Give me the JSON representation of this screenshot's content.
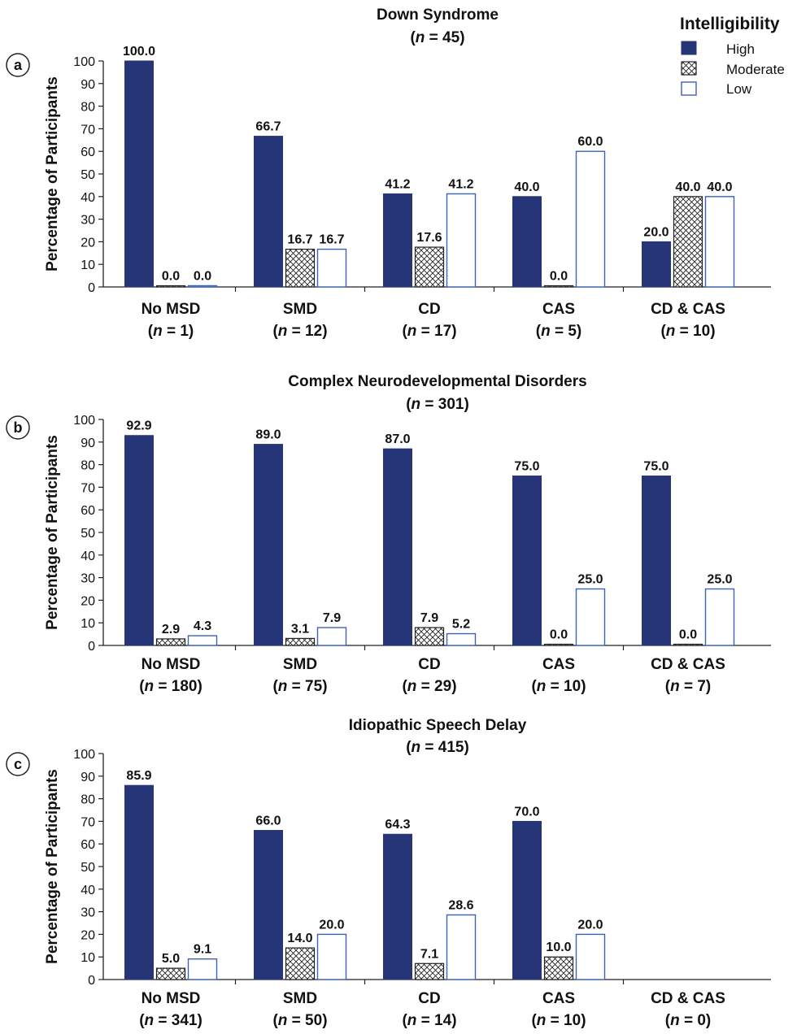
{
  "legend": {
    "title": "Intelligibility",
    "entries": [
      "High",
      "Moderate",
      "Low"
    ]
  },
  "colors": {
    "high": "#263478",
    "moderate_hatch": "#222222",
    "low_stroke": "#3a62b8",
    "axis": "#222222",
    "text": "#111111"
  },
  "chart_data": [
    {
      "type": "bar",
      "panel_label": "a",
      "title": "Down Syndrome",
      "title_n": "45",
      "ylabel": "Percentage of Participants",
      "ylim": [
        0,
        100
      ],
      "yticks": [
        0,
        10,
        20,
        30,
        40,
        50,
        60,
        70,
        80,
        90,
        100
      ],
      "categories": [
        {
          "name": "No MSD",
          "n": "1"
        },
        {
          "name": "SMD",
          "n": "12"
        },
        {
          "name": "CD",
          "n": "17"
        },
        {
          "name": "CAS",
          "n": "5"
        },
        {
          "name": "CD & CAS",
          "n": "10"
        }
      ],
      "series": [
        {
          "name": "High",
          "values": [
            100.0,
            66.7,
            41.2,
            40.0,
            20.0
          ]
        },
        {
          "name": "Moderate",
          "values": [
            0.0,
            16.7,
            17.6,
            0.0,
            40.0
          ]
        },
        {
          "name": "Low",
          "values": [
            0.0,
            16.7,
            41.2,
            60.0,
            40.0
          ]
        }
      ],
      "value_labels": [
        [
          "100.0",
          "66.7",
          "41.2",
          "40.0",
          "20.0"
        ],
        [
          "0.0",
          "16.7",
          "17.6",
          "0.0",
          "40.0"
        ],
        [
          "0.0",
          "16.7",
          "41.2",
          "60.0",
          "40.0"
        ]
      ]
    },
    {
      "type": "bar",
      "panel_label": "b",
      "title": "Complex Neurodevelopmental Disorders",
      "title_n": "301",
      "ylabel": "Percentage of Participants",
      "ylim": [
        0,
        100
      ],
      "yticks": [
        0,
        10,
        20,
        30,
        40,
        50,
        60,
        70,
        80,
        90,
        100
      ],
      "categories": [
        {
          "name": "No MSD",
          "n": "180"
        },
        {
          "name": "SMD",
          "n": "75"
        },
        {
          "name": "CD",
          "n": "29"
        },
        {
          "name": "CAS",
          "n": "10"
        },
        {
          "name": "CD & CAS",
          "n": "7"
        }
      ],
      "series": [
        {
          "name": "High",
          "values": [
            92.9,
            89.0,
            87.0,
            75.0,
            75.0
          ]
        },
        {
          "name": "Moderate",
          "values": [
            2.9,
            3.1,
            7.9,
            0.0,
            0.0
          ]
        },
        {
          "name": "Low",
          "values": [
            4.3,
            7.9,
            5.2,
            25.0,
            25.0
          ]
        }
      ],
      "value_labels": [
        [
          "92.9",
          "89.0",
          "87.0",
          "75.0",
          "75.0"
        ],
        [
          "2.9",
          "3.1",
          "7.9",
          "0.0",
          "0.0"
        ],
        [
          "4.3",
          "7.9",
          "5.2",
          "25.0",
          "25.0"
        ]
      ]
    },
    {
      "type": "bar",
      "panel_label": "c",
      "title": "Idiopathic Speech Delay",
      "title_n": "415",
      "ylabel": "Percentage of Participants",
      "ylim": [
        0,
        100
      ],
      "yticks": [
        0,
        10,
        20,
        30,
        40,
        50,
        60,
        70,
        80,
        90,
        100
      ],
      "categories": [
        {
          "name": "No MSD",
          "n": "341"
        },
        {
          "name": "SMD",
          "n": "50"
        },
        {
          "name": "CD",
          "n": "14"
        },
        {
          "name": "CAS",
          "n": "10"
        },
        {
          "name": "CD & CAS",
          "n": "0"
        }
      ],
      "series": [
        {
          "name": "High",
          "values": [
            85.9,
            66.0,
            64.3,
            70.0,
            null
          ]
        },
        {
          "name": "Moderate",
          "values": [
            5.0,
            14.0,
            7.1,
            10.0,
            null
          ]
        },
        {
          "name": "Low",
          "values": [
            9.1,
            20.0,
            28.6,
            20.0,
            null
          ]
        }
      ],
      "value_labels": [
        [
          "85.9",
          "66.0",
          "64.3",
          "70.0",
          ""
        ],
        [
          "5.0",
          "14.0",
          "7.1",
          "10.0",
          ""
        ],
        [
          "9.1",
          "20.0",
          "28.6",
          "20.0",
          ""
        ]
      ]
    }
  ]
}
